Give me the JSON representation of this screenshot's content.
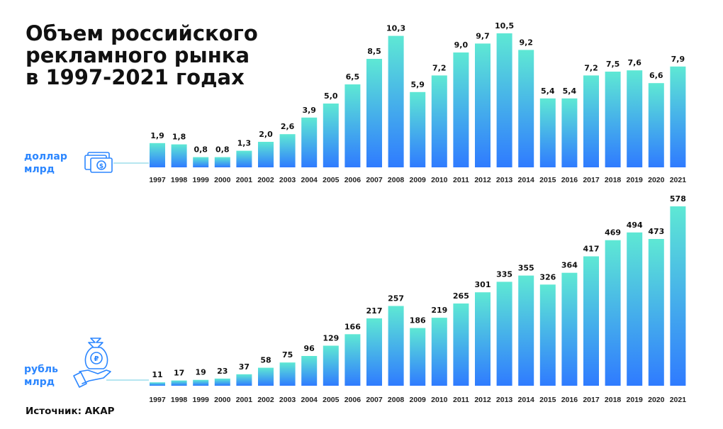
{
  "title": [
    "Объем российского",
    "рекламного рынка",
    "в 1997-2021 годах"
  ],
  "colors": {
    "bar_top": "#5ee8d4",
    "bar_bottom": "#2f7bff",
    "unit_text": "#2b86ff",
    "icon": "#2b86ff",
    "icon_line": "#8ad7e8"
  },
  "icons": {
    "usd": "money-stack-icon",
    "rub": "hand-money-bag-icon"
  },
  "source": "Источник: АКАР",
  "chart_data": [
    {
      "type": "bar",
      "unit": [
        "доллар",
        "млрд"
      ],
      "categories": [
        "1997",
        "1998",
        "1999",
        "2000",
        "2001",
        "2002",
        "2003",
        "2004",
        "2005",
        "2006",
        "2007",
        "2008",
        "2009",
        "2010",
        "2011",
        "2012",
        "2013",
        "2014",
        "2015",
        "2016",
        "2017",
        "2018",
        "2019",
        "2020",
        "2021"
      ],
      "values": [
        1.9,
        1.8,
        0.8,
        0.8,
        1.3,
        2.0,
        2.6,
        3.9,
        5.0,
        6.5,
        8.5,
        10.3,
        5.9,
        7.2,
        9.0,
        9.7,
        10.5,
        9.2,
        5.4,
        5.4,
        7.2,
        7.5,
        7.6,
        6.6,
        7.9
      ],
      "labels": [
        "1,9",
        "1,8",
        "0,8",
        "0,8",
        "1,3",
        "2,0",
        "2,6",
        "3,9",
        "5,0",
        "6,5",
        "8,5",
        "10,3",
        "5,9",
        "7,2",
        "9,0",
        "9,7",
        "10,5",
        "9,2",
        "5,4",
        "5,4",
        "7,2",
        "7,5",
        "7,6",
        "6,6",
        "7,9"
      ]
    },
    {
      "type": "bar",
      "unit": [
        "рубль",
        "млрд"
      ],
      "categories": [
        "1997",
        "1998",
        "1999",
        "2000",
        "2001",
        "2002",
        "2003",
        "2004",
        "2005",
        "2006",
        "2007",
        "2008",
        "2009",
        "2010",
        "2011",
        "2012",
        "2013",
        "2014",
        "2015",
        "2016",
        "2017",
        "2018",
        "2019",
        "2020",
        "2021"
      ],
      "values": [
        11,
        17,
        19,
        23,
        37,
        58,
        75,
        96,
        129,
        166,
        217,
        257,
        186,
        219,
        265,
        301,
        335,
        355,
        326,
        364,
        417,
        469,
        494,
        473,
        578
      ],
      "labels": [
        "11",
        "17",
        "19",
        "23",
        "37",
        "58",
        "75",
        "96",
        "129",
        "166",
        "217",
        "257",
        "186",
        "219",
        "265",
        "301",
        "335",
        "355",
        "326",
        "364",
        "417",
        "469",
        "494",
        "473",
        "578"
      ]
    }
  ]
}
